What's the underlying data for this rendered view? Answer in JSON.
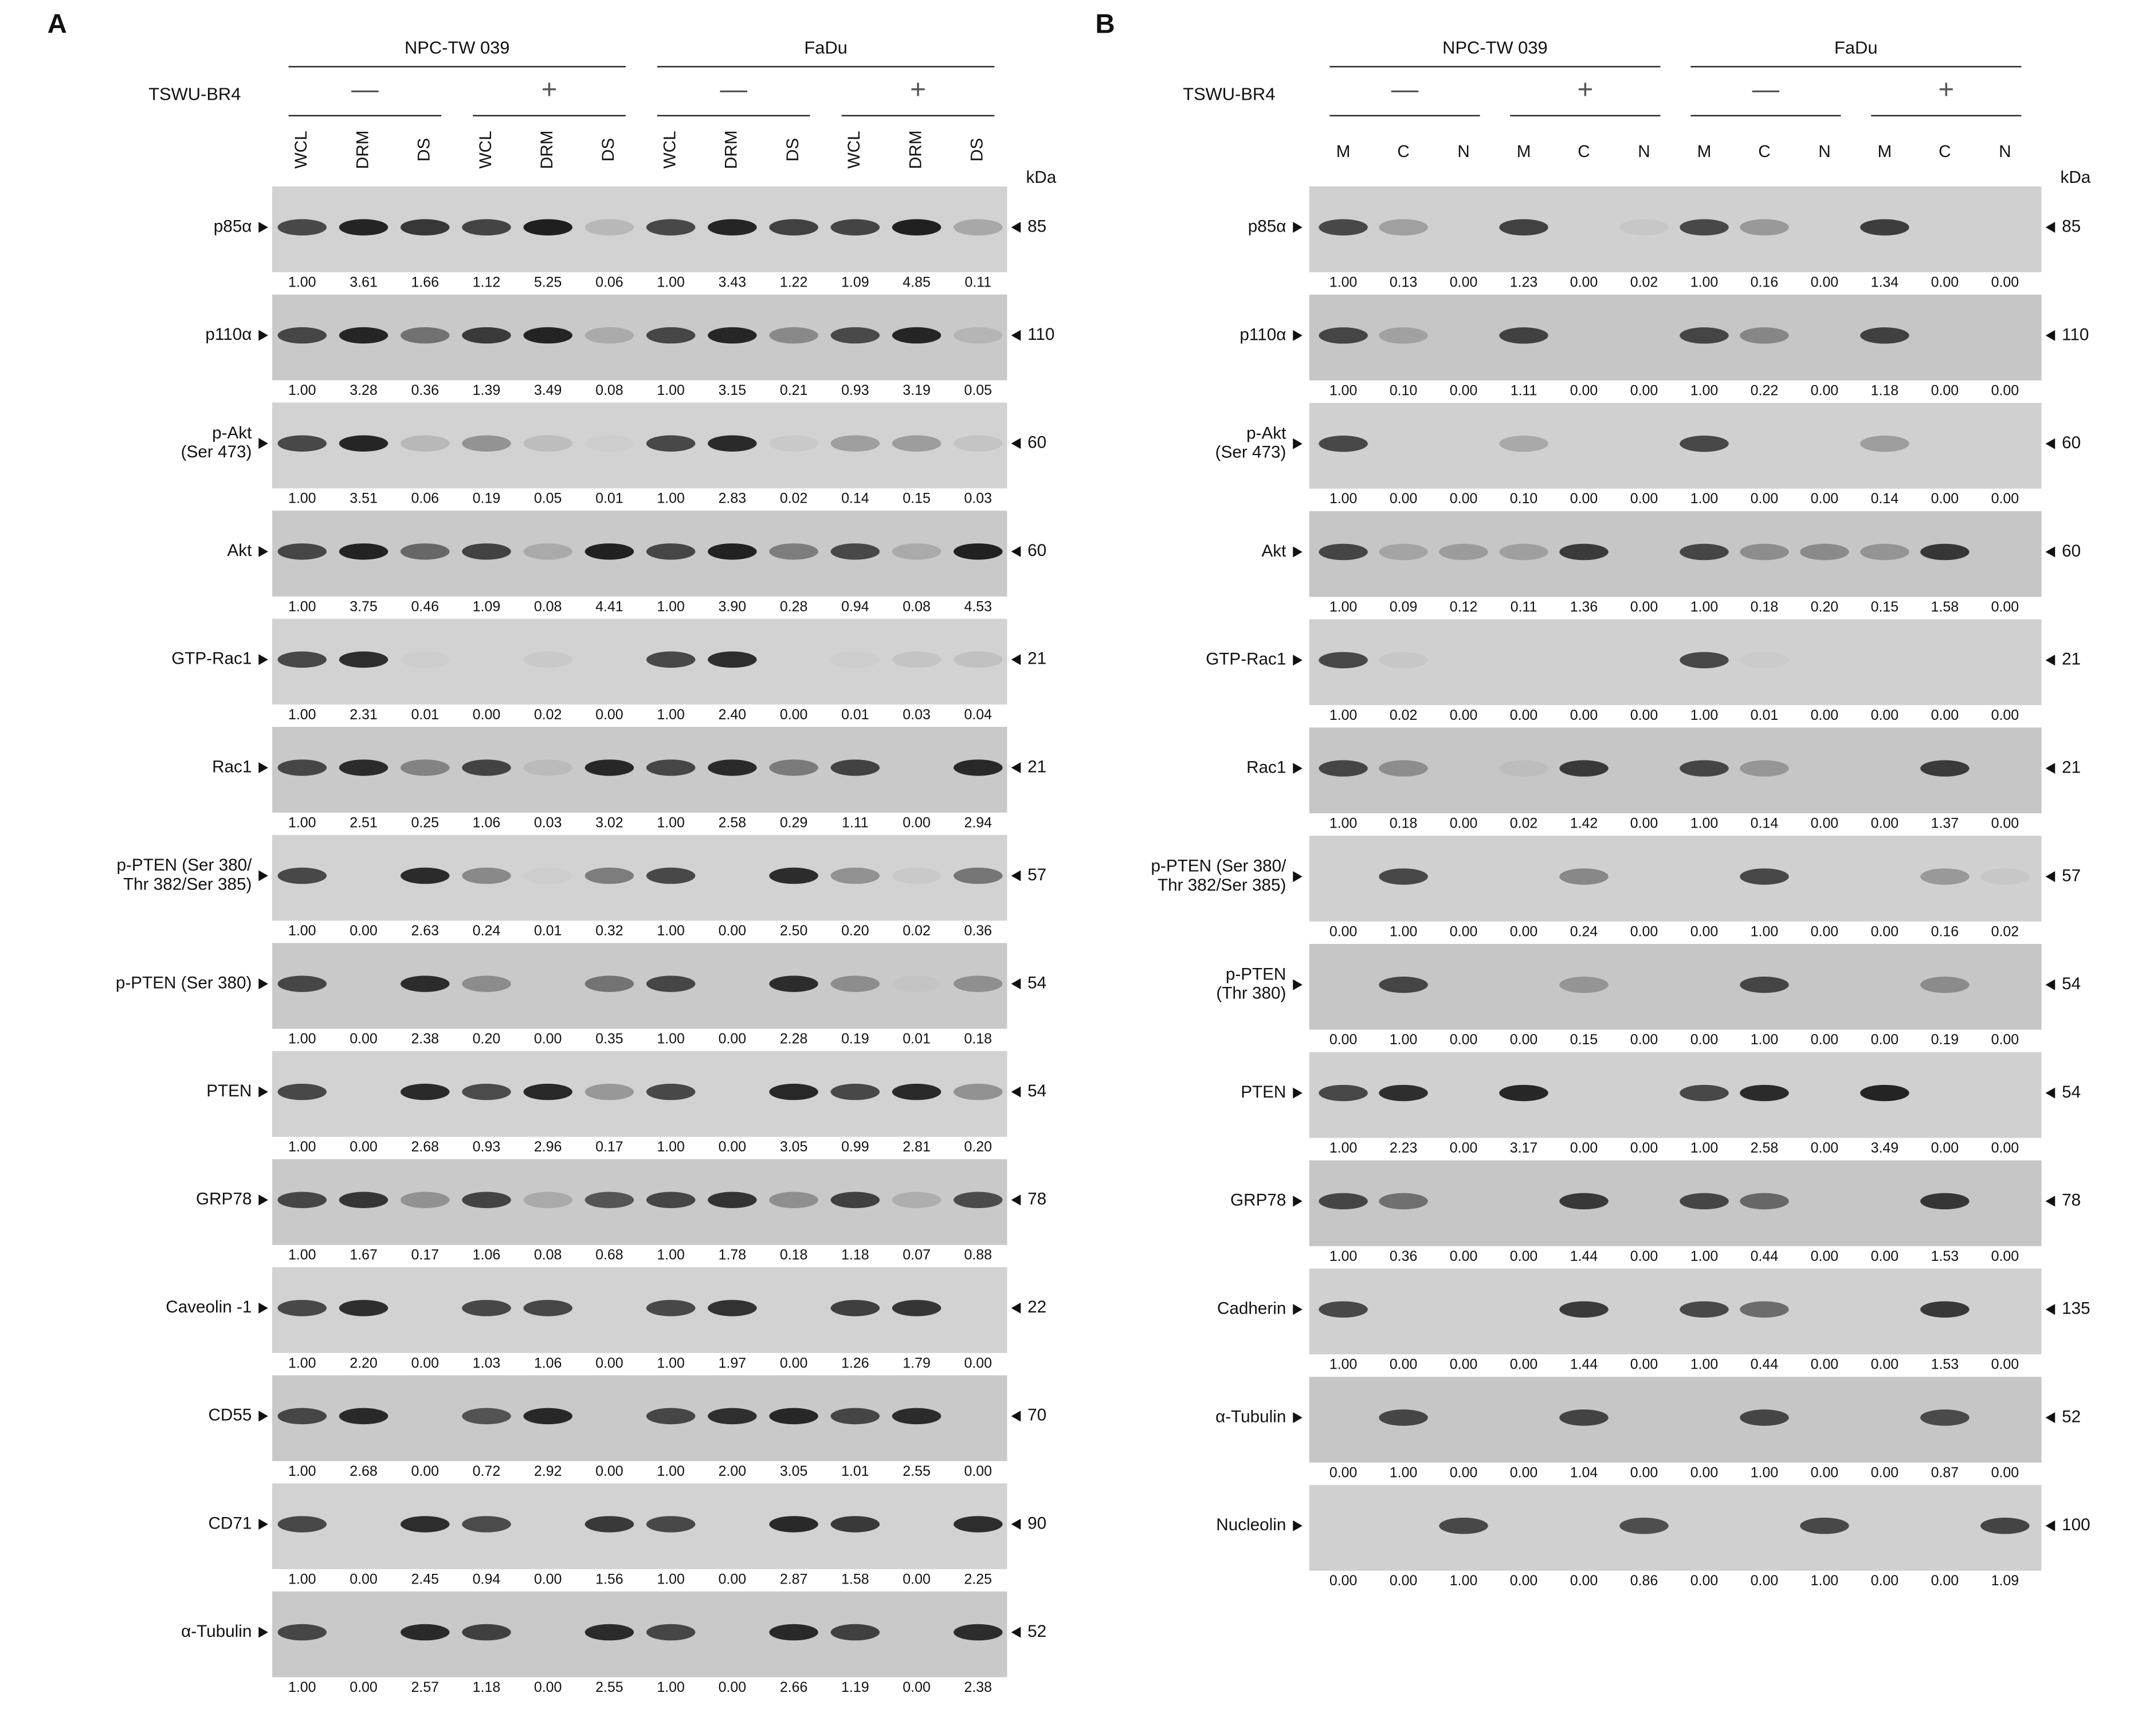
{
  "panels": [
    {
      "letter": "A",
      "treatment_label": "TSWU-BR4",
      "cell_lines": [
        "NPC-TW 039",
        "FaDu"
      ],
      "treatments": [
        "—",
        "+",
        "—",
        "+"
      ],
      "lanes": [
        "WCL",
        "DRM",
        "DS",
        "WCL",
        "DRM",
        "DS",
        "WCL",
        "DRM",
        "DS",
        "WCL",
        "DRM",
        "DS"
      ],
      "unit": "kDa",
      "rows": [
        {
          "label": [
            "p85α"
          ],
          "kda": "85",
          "values": [
            "1.00",
            "3.61",
            "1.66",
            "1.12",
            "5.25",
            "0.06",
            "1.00",
            "3.43",
            "1.22",
            "1.09",
            "4.85",
            "0.11"
          ]
        },
        {
          "label": [
            "p110α"
          ],
          "kda": "110",
          "values": [
            "1.00",
            "3.28",
            "0.36",
            "1.39",
            "3.49",
            "0.08",
            "1.00",
            "3.15",
            "0.21",
            "0.93",
            "3.19",
            "0.05"
          ]
        },
        {
          "label": [
            "p-Akt",
            "(Ser 473)"
          ],
          "kda": "60",
          "values": [
            "1.00",
            "3.51",
            "0.06",
            "0.19",
            "0.05",
            "0.01",
            "1.00",
            "2.83",
            "0.02",
            "0.14",
            "0.15",
            "0.03"
          ]
        },
        {
          "label": [
            "Akt"
          ],
          "kda": "60",
          "values": [
            "1.00",
            "3.75",
            "0.46",
            "1.09",
            "0.08",
            "4.41",
            "1.00",
            "3.90",
            "0.28",
            "0.94",
            "0.08",
            "4.53"
          ]
        },
        {
          "label": [
            "GTP-Rac1"
          ],
          "kda": "21",
          "values": [
            "1.00",
            "2.31",
            "0.01",
            "0.00",
            "0.02",
            "0.00",
            "1.00",
            "2.40",
            "0.00",
            "0.01",
            "0.03",
            "0.04"
          ]
        },
        {
          "label": [
            "Rac1"
          ],
          "kda": "21",
          "values": [
            "1.00",
            "2.51",
            "0.25",
            "1.06",
            "0.03",
            "3.02",
            "1.00",
            "2.58",
            "0.29",
            "1.11",
            "0.00",
            "2.94"
          ]
        },
        {
          "label": [
            "p-PTEN (Ser 380/",
            "Thr 382/Ser 385)"
          ],
          "kda": "57",
          "values": [
            "1.00",
            "0.00",
            "2.63",
            "0.24",
            "0.01",
            "0.32",
            "1.00",
            "0.00",
            "2.50",
            "0.20",
            "0.02",
            "0.36"
          ]
        },
        {
          "label": [
            "p-PTEN (Ser 380)"
          ],
          "kda": "54",
          "values": [
            "1.00",
            "0.00",
            "2.38",
            "0.20",
            "0.00",
            "0.35",
            "1.00",
            "0.00",
            "2.28",
            "0.19",
            "0.01",
            "0.18"
          ]
        },
        {
          "label": [
            "PTEN"
          ],
          "kda": "54",
          "values": [
            "1.00",
            "0.00",
            "2.68",
            "0.93",
            "2.96",
            "0.17",
            "1.00",
            "0.00",
            "3.05",
            "0.99",
            "2.81",
            "0.20"
          ]
        },
        {
          "label": [
            "GRP78"
          ],
          "kda": "78",
          "values": [
            "1.00",
            "1.67",
            "0.17",
            "1.06",
            "0.08",
            "0.68",
            "1.00",
            "1.78",
            "0.18",
            "1.18",
            "0.07",
            "0.88"
          ]
        },
        {
          "label": [
            "Caveolin -1"
          ],
          "kda": "22",
          "values": [
            "1.00",
            "2.20",
            "0.00",
            "1.03",
            "1.06",
            "0.00",
            "1.00",
            "1.97",
            "0.00",
            "1.26",
            "1.79",
            "0.00"
          ]
        },
        {
          "label": [
            "CD55"
          ],
          "kda": "70",
          "values": [
            "1.00",
            "2.68",
            "0.00",
            "0.72",
            "2.92",
            "0.00",
            "1.00",
            "2.00",
            "3.05",
            "1.01",
            "2.55",
            "0.00"
          ]
        },
        {
          "label": [
            "CD71"
          ],
          "kda": "90",
          "values": [
            "1.00",
            "0.00",
            "2.45",
            "0.94",
            "0.00",
            "1.56",
            "1.00",
            "0.00",
            "2.87",
            "1.58",
            "0.00",
            "2.25"
          ]
        },
        {
          "label": [
            "α-Tubulin"
          ],
          "kda": "52",
          "values": [
            "1.00",
            "0.00",
            "2.57",
            "1.18",
            "0.00",
            "2.55",
            "1.00",
            "0.00",
            "2.66",
            "1.19",
            "0.00",
            "2.38"
          ]
        }
      ]
    },
    {
      "letter": "B",
      "treatment_label": "TSWU-BR4",
      "cell_lines": [
        "NPC-TW 039",
        "FaDu"
      ],
      "treatments": [
        "—",
        "+",
        "—",
        "+"
      ],
      "lanes": [
        "M",
        "C",
        "N",
        "M",
        "C",
        "N",
        "M",
        "C",
        "N",
        "M",
        "C",
        "N"
      ],
      "unit": "kDa",
      "rows": [
        {
          "label": [
            "p85α"
          ],
          "kda": "85",
          "values": [
            "1.00",
            "0.13",
            "0.00",
            "1.23",
            "0.00",
            "0.02",
            "1.00",
            "0.16",
            "0.00",
            "1.34",
            "0.00",
            "0.00"
          ]
        },
        {
          "label": [
            "p110α"
          ],
          "kda": "110",
          "values": [
            "1.00",
            "0.10",
            "0.00",
            "1.11",
            "0.00",
            "0.00",
            "1.00",
            "0.22",
            "0.00",
            "1.18",
            "0.00",
            "0.00"
          ]
        },
        {
          "label": [
            "p-Akt",
            "(Ser 473)"
          ],
          "kda": "60",
          "values": [
            "1.00",
            "0.00",
            "0.00",
            "0.10",
            "0.00",
            "0.00",
            "1.00",
            "0.00",
            "0.00",
            "0.14",
            "0.00",
            "0.00"
          ]
        },
        {
          "label": [
            "Akt"
          ],
          "kda": "60",
          "values": [
            "1.00",
            "0.09",
            "0.12",
            "0.11",
            "1.36",
            "0.00",
            "1.00",
            "0.18",
            "0.20",
            "0.15",
            "1.58",
            "0.00"
          ]
        },
        {
          "label": [
            "GTP-Rac1"
          ],
          "kda": "21",
          "values": [
            "1.00",
            "0.02",
            "0.00",
            "0.00",
            "0.00",
            "0.00",
            "1.00",
            "0.01",
            "0.00",
            "0.00",
            "0.00",
            "0.00"
          ]
        },
        {
          "label": [
            "Rac1"
          ],
          "kda": "21",
          "values": [
            "1.00",
            "0.18",
            "0.00",
            "0.02",
            "1.42",
            "0.00",
            "1.00",
            "0.14",
            "0.00",
            "0.00",
            "1.37",
            "0.00"
          ]
        },
        {
          "label": [
            "p-PTEN (Ser 380/",
            "Thr 382/Ser 385)"
          ],
          "kda": "57",
          "values": [
            "0.00",
            "1.00",
            "0.00",
            "0.00",
            "0.24",
            "0.00",
            "0.00",
            "1.00",
            "0.00",
            "0.00",
            "0.16",
            "0.02"
          ]
        },
        {
          "label": [
            "p-PTEN",
            "(Thr 380)"
          ],
          "kda": "54",
          "values": [
            "0.00",
            "1.00",
            "0.00",
            "0.00",
            "0.15",
            "0.00",
            "0.00",
            "1.00",
            "0.00",
            "0.00",
            "0.19",
            "0.00"
          ]
        },
        {
          "label": [
            "PTEN"
          ],
          "kda": "54",
          "values": [
            "1.00",
            "2.23",
            "0.00",
            "3.17",
            "0.00",
            "0.00",
            "1.00",
            "2.58",
            "0.00",
            "3.49",
            "0.00",
            "0.00"
          ]
        },
        {
          "label": [
            "GRP78"
          ],
          "kda": "78",
          "values": [
            "1.00",
            "0.36",
            "0.00",
            "0.00",
            "1.44",
            "0.00",
            "1.00",
            "0.44",
            "0.00",
            "0.00",
            "1.53",
            "0.00"
          ]
        },
        {
          "label": [
            "Cadherin"
          ],
          "kda": "135",
          "values": [
            "1.00",
            "0.00",
            "0.00",
            "0.00",
            "1.44",
            "0.00",
            "1.00",
            "0.44",
            "0.00",
            "0.00",
            "1.53",
            "0.00"
          ]
        },
        {
          "label": [
            "α-Tubulin"
          ],
          "kda": "52",
          "values": [
            "0.00",
            "1.00",
            "0.00",
            "0.00",
            "1.04",
            "0.00",
            "0.00",
            "1.00",
            "0.00",
            "0.00",
            "0.87",
            "0.00"
          ]
        },
        {
          "label": [
            "Nucleolin"
          ],
          "kda": "100",
          "values": [
            "0.00",
            "0.00",
            "1.00",
            "0.00",
            "0.00",
            "0.86",
            "0.00",
            "0.00",
            "1.00",
            "0.00",
            "0.00",
            "1.09"
          ]
        }
      ]
    }
  ]
}
